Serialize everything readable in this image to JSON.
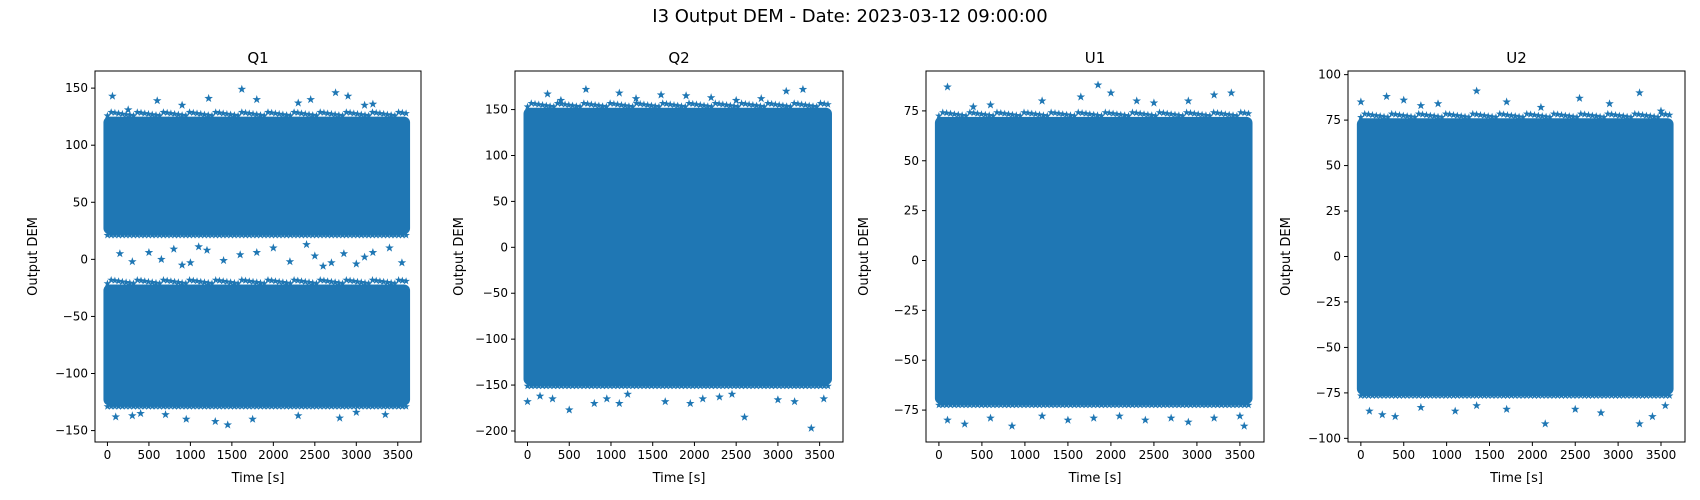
{
  "figure": {
    "suptitle": "I3 Output DEM - Date: 2023-03-12 09:00:00"
  },
  "chart_data": [
    {
      "type": "scatter",
      "title": "Q1",
      "xlabel": "Time [s]",
      "ylabel": "Output DEM",
      "marker": "star",
      "color": "#1f77b4",
      "xlim": [
        -150,
        3780
      ],
      "ylim": [
        -160,
        165
      ],
      "xticks": [
        0,
        500,
        1000,
        1500,
        2000,
        2500,
        3000,
        3500
      ],
      "yticks": [
        -150,
        -100,
        -50,
        0,
        50,
        100,
        150
      ],
      "x_range": [
        0,
        3600
      ],
      "bands": [
        {
          "y_low": 22,
          "y_high": 125
        },
        {
          "y_low": -128,
          "y_high": -22
        }
      ],
      "outliers": [
        [
          60,
          143
        ],
        [
          600,
          139
        ],
        [
          900,
          135
        ],
        [
          1220,
          141
        ],
        [
          1620,
          149
        ],
        [
          1800,
          140
        ],
        [
          2300,
          137
        ],
        [
          2450,
          140
        ],
        [
          2750,
          146
        ],
        [
          2900,
          143
        ],
        [
          3200,
          136
        ],
        [
          250,
          131
        ],
        [
          3100,
          135
        ],
        [
          100,
          -138
        ],
        [
          300,
          -137
        ],
        [
          400,
          -135
        ],
        [
          700,
          -136
        ],
        [
          950,
          -140
        ],
        [
          1300,
          -142
        ],
        [
          1450,
          -145
        ],
        [
          1750,
          -140
        ],
        [
          2300,
          -137
        ],
        [
          2800,
          -139
        ],
        [
          3000,
          -134
        ],
        [
          3350,
          -136
        ],
        [
          150,
          5
        ],
        [
          300,
          -2
        ],
        [
          500,
          6
        ],
        [
          650,
          0
        ],
        [
          1000,
          -3
        ],
        [
          1200,
          8
        ],
        [
          1400,
          -1
        ],
        [
          1600,
          4
        ],
        [
          1800,
          6
        ],
        [
          2000,
          10
        ],
        [
          2200,
          -2
        ],
        [
          2500,
          3
        ],
        [
          2700,
          -3
        ],
        [
          2850,
          5
        ],
        [
          3000,
          -4
        ],
        [
          3200,
          6
        ],
        [
          3400,
          10
        ],
        [
          3550,
          -3
        ],
        [
          800,
          9
        ],
        [
          1100,
          11
        ],
        [
          2400,
          13
        ],
        [
          2600,
          -6
        ],
        [
          900,
          -5
        ],
        [
          3100,
          2
        ]
      ]
    },
    {
      "type": "scatter",
      "title": "Q2",
      "xlabel": "Time [s]",
      "ylabel": "Output DEM",
      "marker": "star",
      "color": "#1f77b4",
      "xlim": [
        -150,
        3780
      ],
      "ylim": [
        -212,
        192
      ],
      "xticks": [
        0,
        500,
        1000,
        1500,
        2000,
        2500,
        3000,
        3500
      ],
      "yticks": [
        -200,
        -150,
        -100,
        -50,
        0,
        50,
        100,
        150
      ],
      "x_range": [
        0,
        3600
      ],
      "bands": [
        {
          "y_low": -150,
          "y_high": 152
        }
      ],
      "outliers": [
        [
          240,
          167
        ],
        [
          700,
          172
        ],
        [
          1100,
          168
        ],
        [
          1300,
          162
        ],
        [
          1600,
          166
        ],
        [
          1900,
          165
        ],
        [
          2200,
          163
        ],
        [
          2500,
          160
        ],
        [
          2800,
          162
        ],
        [
          3100,
          170
        ],
        [
          3300,
          172
        ],
        [
          400,
          160
        ],
        [
          0,
          -168
        ],
        [
          150,
          -162
        ],
        [
          300,
          -165
        ],
        [
          500,
          -177
        ],
        [
          800,
          -170
        ],
        [
          950,
          -165
        ],
        [
          1200,
          -160
        ],
        [
          1650,
          -168
        ],
        [
          1950,
          -170
        ],
        [
          2100,
          -165
        ],
        [
          2300,
          -163
        ],
        [
          2600,
          -185
        ],
        [
          3000,
          -166
        ],
        [
          3200,
          -168
        ],
        [
          3400,
          -197
        ],
        [
          3550,
          -165
        ],
        [
          1100,
          -170
        ],
        [
          2450,
          -160
        ]
      ]
    },
    {
      "type": "scatter",
      "title": "U1",
      "xlabel": "Time [s]",
      "ylabel": "Output DEM",
      "marker": "star",
      "color": "#1f77b4",
      "xlim": [
        -150,
        3780
      ],
      "ylim": [
        -91,
        95
      ],
      "xticks": [
        0,
        500,
        1000,
        1500,
        2000,
        2500,
        3000,
        3500
      ],
      "yticks": [
        -75,
        -50,
        -25,
        0,
        25,
        50,
        75
      ],
      "x_range": [
        0,
        3600
      ],
      "bands": [
        {
          "y_low": -72,
          "y_high": 72
        }
      ],
      "outliers": [
        [
          100,
          87
        ],
        [
          600,
          78
        ],
        [
          1200,
          80
        ],
        [
          1650,
          82
        ],
        [
          1850,
          88
        ],
        [
          2000,
          84
        ],
        [
          2300,
          80
        ],
        [
          2500,
          79
        ],
        [
          2900,
          80
        ],
        [
          3200,
          83
        ],
        [
          3400,
          84
        ],
        [
          400,
          77
        ],
        [
          100,
          -80
        ],
        [
          300,
          -82
        ],
        [
          600,
          -79
        ],
        [
          850,
          -83
        ],
        [
          1200,
          -78
        ],
        [
          1500,
          -80
        ],
        [
          1800,
          -79
        ],
        [
          2100,
          -78
        ],
        [
          2400,
          -80
        ],
        [
          2700,
          -79
        ],
        [
          2900,
          -81
        ],
        [
          3200,
          -79
        ],
        [
          3550,
          -83
        ],
        [
          3500,
          -78
        ]
      ]
    },
    {
      "type": "scatter",
      "title": "U2",
      "xlabel": "Time [s]",
      "ylabel": "Output DEM",
      "marker": "star",
      "color": "#1f77b4",
      "xlim": [
        -150,
        3780
      ],
      "ylim": [
        -102,
        102
      ],
      "xticks": [
        0,
        500,
        1000,
        1500,
        2000,
        2500,
        3000,
        3500
      ],
      "yticks": [
        -100,
        -75,
        -50,
        -25,
        0,
        25,
        50,
        75,
        100
      ],
      "x_range": [
        0,
        3600
      ],
      "bands": [
        {
          "y_low": -76,
          "y_high": 76
        }
      ],
      "outliers": [
        [
          0,
          85
        ],
        [
          300,
          88
        ],
        [
          500,
          86
        ],
        [
          900,
          84
        ],
        [
          1350,
          91
        ],
        [
          1700,
          85
        ],
        [
          2100,
          82
        ],
        [
          2550,
          87
        ],
        [
          2900,
          84
        ],
        [
          3250,
          90
        ],
        [
          3500,
          80
        ],
        [
          700,
          83
        ],
        [
          100,
          -85
        ],
        [
          250,
          -87
        ],
        [
          400,
          -88
        ],
        [
          700,
          -83
        ],
        [
          1100,
          -85
        ],
        [
          1350,
          -82
        ],
        [
          1700,
          -84
        ],
        [
          2150,
          -92
        ],
        [
          2500,
          -84
        ],
        [
          2800,
          -86
        ],
        [
          3250,
          -92
        ],
        [
          3400,
          -88
        ],
        [
          3550,
          -82
        ]
      ]
    }
  ]
}
